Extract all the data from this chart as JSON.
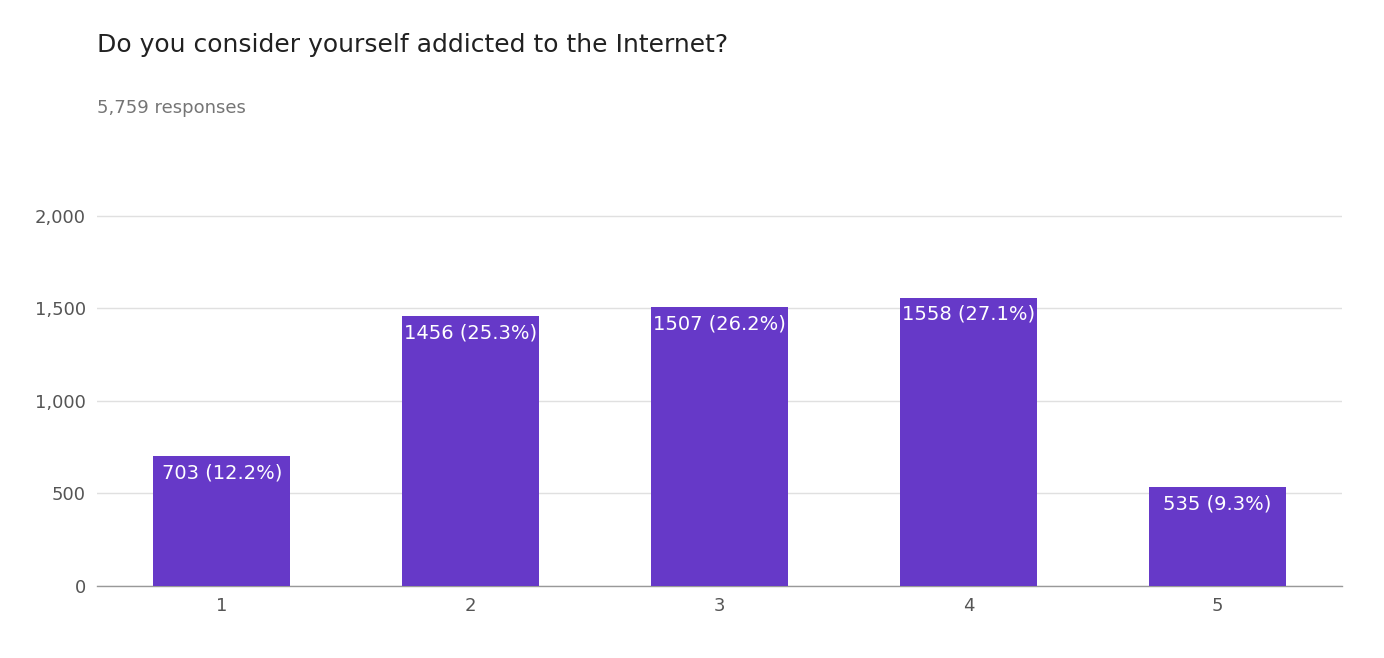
{
  "title": "Do you consider yourself addicted to the Internet?",
  "subtitle": "5,759 responses",
  "categories": [
    "1",
    "2",
    "3",
    "4",
    "5"
  ],
  "values": [
    703,
    1456,
    1507,
    1558,
    535
  ],
  "labels": [
    "703 (12.2%)",
    "1456 (25.3%)",
    "1507 (26.2%)",
    "1558 (27.1%)",
    "535 (9.3%)"
  ],
  "bar_color": "#6639c8",
  "label_color": "#ffffff",
  "background_color": "#ffffff",
  "title_fontsize": 18,
  "subtitle_fontsize": 13,
  "label_fontsize": 14,
  "tick_fontsize": 13,
  "ylim": [
    0,
    2100
  ],
  "yticks": [
    0,
    500,
    1000,
    1500,
    2000
  ],
  "ytick_labels": [
    "0",
    "500",
    "1,000",
    "1,500",
    "2,000"
  ],
  "grid_color": "#e0e0e0",
  "bar_width": 0.55
}
